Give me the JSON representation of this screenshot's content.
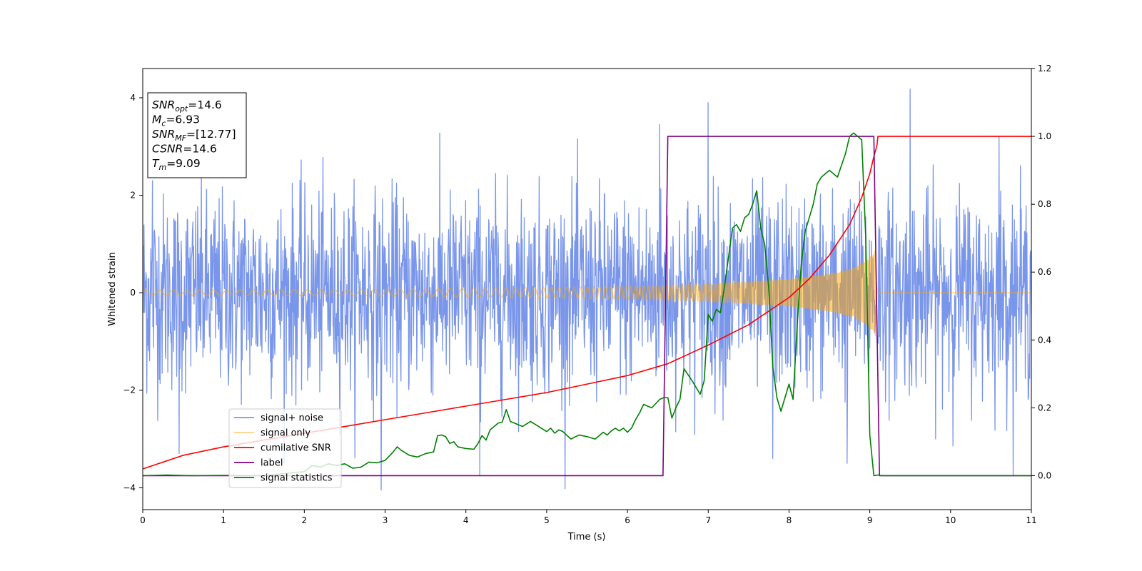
{
  "chart_data": {
    "type": "line",
    "title": "",
    "xlabel": "Time (s)",
    "ylabel": "Whitened strain",
    "ylabel_right": "",
    "xlim": [
      0,
      11
    ],
    "ylim": [
      -4.45,
      4.6
    ],
    "ylim_right": [
      -0.1,
      1.2
    ],
    "x_ticks": [
      0,
      1,
      2,
      3,
      4,
      5,
      6,
      7,
      8,
      9,
      10,
      11
    ],
    "y_ticks": [
      -4,
      -2,
      0,
      2,
      4
    ],
    "y_ticks_right": [
      0.0,
      0.2,
      0.4,
      0.6,
      0.8,
      1.0,
      1.2
    ],
    "grid": false,
    "legend_position": "lower-left",
    "annotation_box": {
      "position": "top-left",
      "lines": [
        {
          "base": "SNR",
          "sub": "opt",
          "value": "=14.6"
        },
        {
          "base": "M",
          "sub": "c",
          "value": "=6.93"
        },
        {
          "base": "SNR",
          "sub": "MF",
          "value": "=[12.77]"
        },
        {
          "base": "CSNR",
          "sub": "",
          "value": "=14.6"
        },
        {
          "base": "T",
          "sub": "m",
          "value": "=9.09"
        }
      ]
    },
    "series": [
      {
        "name": "signal+ noise",
        "axis": "left",
        "color": "#4169e1",
        "opacity": 0.7,
        "kind": "noise",
        "noise_sigma": 1.0,
        "noise_range": [
          -4.05,
          4.18
        ],
        "num_samples": 2200,
        "peaks": [
          [
            0.12,
            2.3
          ],
          [
            0.45,
            -3.3
          ],
          [
            2.95,
            -4.05
          ],
          [
            4.17,
            -3.75
          ],
          [
            6.4,
            3.45
          ],
          [
            7.0,
            3.9
          ],
          [
            7.8,
            -3.4
          ],
          [
            8.72,
            -3.5
          ],
          [
            9.5,
            4.18
          ],
          [
            10.6,
            3.2
          ]
        ]
      },
      {
        "name": "signal only",
        "axis": "left",
        "color": "#ffa500",
        "opacity": 0.5,
        "kind": "chirp",
        "amplitude_envelope": [
          [
            0,
            0.05
          ],
          [
            3,
            0.07
          ],
          [
            6,
            0.13
          ],
          [
            7,
            0.18
          ],
          [
            8,
            0.27
          ],
          [
            8.5,
            0.38
          ],
          [
            8.8,
            0.5
          ],
          [
            9.0,
            0.7
          ],
          [
            9.07,
            0.95
          ],
          [
            9.09,
            0.0
          ]
        ],
        "start_frequency_hz": 6,
        "end_frequency_hz": 140,
        "merger_time": 9.09
      },
      {
        "name": "cumilative SNR",
        "axis": "right",
        "color": "#ff0000",
        "x": [
          0,
          0.5,
          1,
          1.5,
          2,
          2.5,
          3,
          3.5,
          4,
          4.5,
          5,
          5.5,
          6,
          6.5,
          7,
          7.5,
          8,
          8.25,
          8.5,
          8.75,
          8.9,
          9.0,
          9.05,
          9.09,
          9.1,
          11
        ],
        "y": [
          0.02,
          0.06,
          0.085,
          0.105,
          0.125,
          0.145,
          0.165,
          0.185,
          0.205,
          0.225,
          0.245,
          0.27,
          0.295,
          0.33,
          0.385,
          0.445,
          0.525,
          0.58,
          0.65,
          0.74,
          0.82,
          0.89,
          0.94,
          0.975,
          1.0,
          1.0
        ]
      },
      {
        "name": "label",
        "axis": "right",
        "color": "#800080",
        "x": [
          0,
          6.44,
          6.5,
          9.05,
          9.12,
          11
        ],
        "y": [
          0,
          0,
          1,
          1,
          0,
          0
        ]
      },
      {
        "name": "signal statistics",
        "axis": "right",
        "color": "#008000",
        "x": [
          0,
          0.3,
          0.6,
          1.0,
          1.5,
          2.0,
          2.1,
          2.2,
          2.3,
          2.4,
          2.5,
          2.6,
          2.7,
          2.8,
          2.9,
          3.0,
          3.1,
          3.15,
          3.2,
          3.3,
          3.4,
          3.5,
          3.6,
          3.65,
          3.7,
          3.75,
          3.8,
          3.85,
          3.9,
          4.0,
          4.1,
          4.15,
          4.2,
          4.25,
          4.3,
          4.35,
          4.4,
          4.45,
          4.5,
          4.55,
          4.6,
          4.7,
          4.8,
          4.9,
          5.0,
          5.05,
          5.1,
          5.15,
          5.2,
          5.3,
          5.4,
          5.5,
          5.6,
          5.65,
          5.7,
          5.75,
          5.8,
          5.85,
          5.9,
          5.95,
          6.0,
          6.05,
          6.1,
          6.15,
          6.2,
          6.3,
          6.4,
          6.45,
          6.5,
          6.55,
          6.6,
          6.65,
          6.7,
          6.8,
          6.9,
          6.95,
          7.0,
          7.05,
          7.1,
          7.15,
          7.2,
          7.3,
          7.35,
          7.4,
          7.45,
          7.5,
          7.55,
          7.6,
          7.65,
          7.7,
          7.75,
          7.8,
          7.85,
          7.9,
          8.0,
          8.05,
          8.1,
          8.15,
          8.2,
          8.25,
          8.3,
          8.35,
          8.4,
          8.5,
          8.6,
          8.7,
          8.75,
          8.8,
          8.85,
          8.9,
          8.95,
          9.0,
          9.05,
          9.1,
          9.15,
          9.2,
          9.3,
          11
        ],
        "y": [
          0,
          0.002,
          0.0,
          0.001,
          0.0,
          0.012,
          0.03,
          0.025,
          0.035,
          0.03,
          0.035,
          0.022,
          0.025,
          0.04,
          0.038,
          0.045,
          0.07,
          0.085,
          0.075,
          0.06,
          0.055,
          0.065,
          0.07,
          0.118,
          0.12,
          0.115,
          0.095,
          0.1,
          0.085,
          0.08,
          0.078,
          0.095,
          0.118,
          0.105,
          0.135,
          0.145,
          0.155,
          0.158,
          0.195,
          0.16,
          0.155,
          0.145,
          0.16,
          0.145,
          0.13,
          0.14,
          0.125,
          0.135,
          0.13,
          0.108,
          0.12,
          0.115,
          0.108,
          0.118,
          0.128,
          0.12,
          0.132,
          0.14,
          0.132,
          0.14,
          0.128,
          0.14,
          0.165,
          0.185,
          0.21,
          0.2,
          0.225,
          0.23,
          0.23,
          0.17,
          0.2,
          0.225,
          0.315,
          0.28,
          0.24,
          0.28,
          0.475,
          0.455,
          0.49,
          0.48,
          0.555,
          0.73,
          0.74,
          0.72,
          0.76,
          0.77,
          0.8,
          0.84,
          0.73,
          0.68,
          0.55,
          0.32,
          0.23,
          0.19,
          0.27,
          0.225,
          0.44,
          0.62,
          0.72,
          0.76,
          0.8,
          0.86,
          0.88,
          0.9,
          0.88,
          0.95,
          1.0,
          1.01,
          1.0,
          0.99,
          0.7,
          0.12,
          0.0,
          0.002,
          0.0,
          0.0,
          0.0,
          0.0
        ]
      }
    ]
  }
}
